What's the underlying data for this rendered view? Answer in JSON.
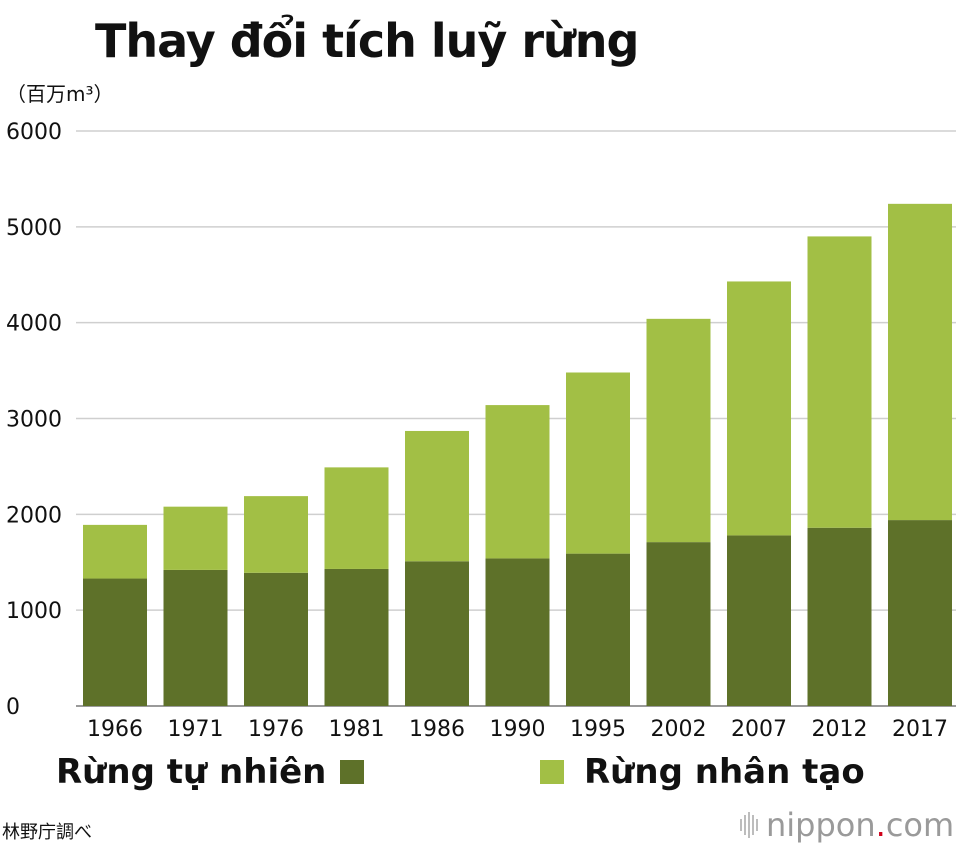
{
  "title": "Thay đổi tích luỹ rừng",
  "unit_label": "（百万m³）",
  "source_note": "林野庁調べ",
  "brand": {
    "name": "nippon",
    "dot": ".",
    "tld": "com",
    "dot_color": "#d0021b"
  },
  "legend": {
    "natural": {
      "label": "Rừng tự nhiên",
      "color": "#5e7129"
    },
    "planted": {
      "label": "Rừng nhân tạo",
      "color": "#a2bf45"
    }
  },
  "chart_data": {
    "type": "bar",
    "stacked": true,
    "title": "Thay đổi tích luỹ rừng",
    "ylabel": "（百万m³）",
    "ylim": [
      0,
      6000
    ],
    "yticks": [
      0,
      1000,
      2000,
      3000,
      4000,
      5000,
      6000
    ],
    "grid": true,
    "legend_position": "bottom",
    "categories": [
      "1966",
      "1971",
      "1976",
      "1981",
      "1986",
      "1990",
      "1995",
      "2002",
      "2007",
      "2012",
      "2017"
    ],
    "series": [
      {
        "name": "Rừng tự nhiên",
        "color": "#5e7129",
        "values": [
          1330,
          1420,
          1390,
          1430,
          1510,
          1540,
          1590,
          1710,
          1780,
          1860,
          1940
        ]
      },
      {
        "name": "Rừng nhân tạo",
        "color": "#a2bf45",
        "values": [
          560,
          660,
          800,
          1060,
          1360,
          1600,
          1890,
          2330,
          2650,
          3040,
          3300
        ]
      }
    ]
  }
}
